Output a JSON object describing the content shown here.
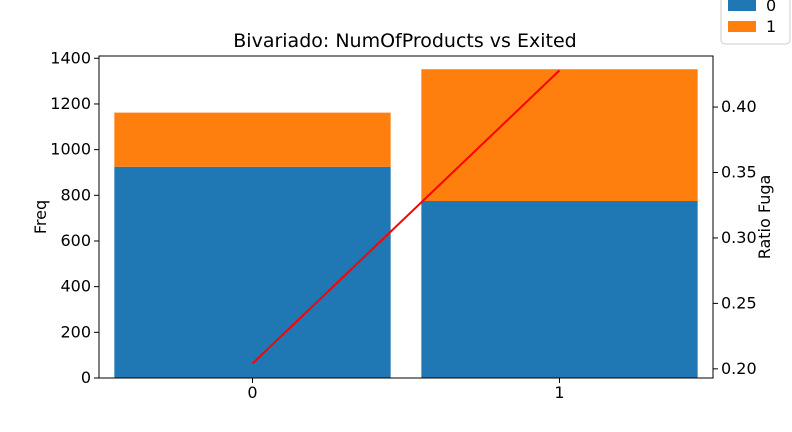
{
  "chart_data": {
    "type": "bar",
    "title": "Bivariado: NumOfProducts vs Exited",
    "xlabel": "",
    "ylabel": "Freq",
    "y2label": "Ratio Fuga",
    "categories": [
      "0",
      "1"
    ],
    "series": [
      {
        "name": "0",
        "values": [
          925,
          775
        ],
        "color": "#1f77b4"
      },
      {
        "name": "1",
        "values": [
          237,
          577
        ],
        "color": "#ff7f0e"
      }
    ],
    "ratio_line": {
      "values": [
        0.204,
        0.428
      ],
      "color": "#ff0000"
    },
    "ylim": [
      0,
      1410
    ],
    "y_ticks": [
      0,
      200,
      400,
      600,
      800,
      1000,
      1200,
      1400
    ],
    "y2lim": [
      0.193,
      0.439
    ],
    "y2_ticks": [
      0.2,
      0.25,
      0.3,
      0.35,
      0.4
    ],
    "y2_tick_labels": [
      "0.20",
      "0.25",
      "0.30",
      "0.35",
      "0.40"
    ],
    "stacked": true,
    "legend": "top-right",
    "grid": false
  }
}
